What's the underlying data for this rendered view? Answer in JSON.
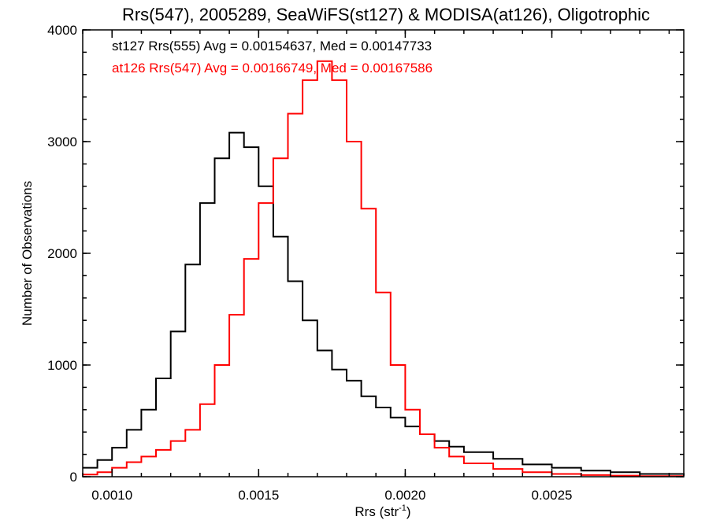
{
  "chart_data": {
    "type": "line",
    "step": true,
    "title": "Rrs(547), 2005289, SeaWiFS(st127) & MODISA(at126), Oligotrophic",
    "xlabel": "Rrs (str",
    "xlabel_sup": "-1",
    "xlabel_end": ")",
    "ylabel": "Number of Observations",
    "xlim": [
      0.0009,
      0.00295
    ],
    "ylim": [
      0,
      4000
    ],
    "x_ticks": [
      0.001,
      0.0015,
      0.002,
      0.0025
    ],
    "x_tick_labels": [
      "0.0010",
      "0.0015",
      "0.0020",
      "0.0025"
    ],
    "y_ticks": [
      0,
      1000,
      2000,
      3000,
      4000
    ],
    "y_tick_labels": [
      "0",
      "1000",
      "2000",
      "3000",
      "4000"
    ],
    "grid": false,
    "legend_position": "top-left",
    "series": [
      {
        "label": "st127 Rrs(555) Avg = 0.00154637, Med = 0.00147733",
        "color": "#000000",
        "x": [
          0.0009,
          0.00095,
          0.001,
          0.00105,
          0.0011,
          0.00115,
          0.0012,
          0.00125,
          0.0013,
          0.00135,
          0.0014,
          0.00145,
          0.0015,
          0.00155,
          0.0016,
          0.00165,
          0.0017,
          0.00175,
          0.0018,
          0.00185,
          0.0019,
          0.00195,
          0.002,
          0.00205,
          0.0021,
          0.00215,
          0.0022,
          0.0023,
          0.0024,
          0.0025,
          0.0026,
          0.0027,
          0.0028,
          0.00295
        ],
        "y": [
          80,
          150,
          260,
          420,
          600,
          880,
          1300,
          1900,
          2450,
          2850,
          3080,
          2950,
          2600,
          2150,
          1750,
          1400,
          1130,
          960,
          860,
          720,
          620,
          530,
          450,
          380,
          320,
          270,
          220,
          160,
          110,
          80,
          55,
          40,
          25,
          10
        ]
      },
      {
        "label": "at126 Rrs(547) Avg = 0.00166749, Med = 0.00167586",
        "color": "#ff0000",
        "x": [
          0.0009,
          0.00095,
          0.001,
          0.00105,
          0.0011,
          0.00115,
          0.0012,
          0.00125,
          0.0013,
          0.00135,
          0.0014,
          0.00145,
          0.0015,
          0.00155,
          0.0016,
          0.00165,
          0.0017,
          0.00175,
          0.0018,
          0.00185,
          0.0019,
          0.00195,
          0.002,
          0.00205,
          0.0021,
          0.00215,
          0.0022,
          0.0023,
          0.0024,
          0.0025,
          0.0026,
          0.0027,
          0.0028,
          0.00295
        ],
        "y": [
          20,
          40,
          80,
          130,
          180,
          240,
          320,
          420,
          650,
          1000,
          1450,
          1950,
          2450,
          2850,
          3250,
          3550,
          3720,
          3550,
          3000,
          2400,
          1650,
          1000,
          600,
          380,
          260,
          180,
          120,
          70,
          40,
          25,
          15,
          10,
          5,
          5
        ]
      }
    ]
  }
}
